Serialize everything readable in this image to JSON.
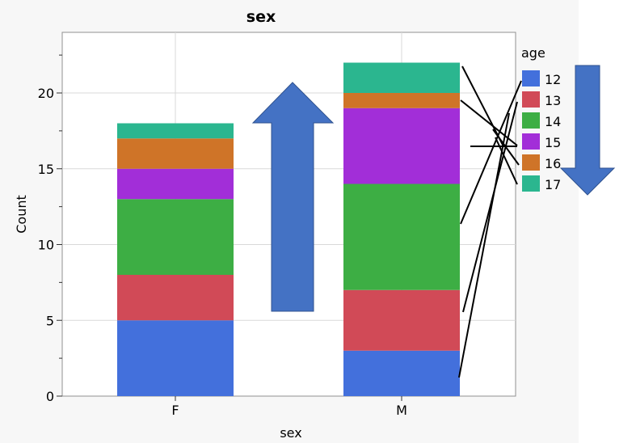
{
  "chart_data": {
    "type": "bar",
    "stacked": true,
    "title": "sex",
    "xlabel": "sex",
    "ylabel": "Count",
    "categories": [
      "F",
      "M"
    ],
    "ylim": [
      0,
      24
    ],
    "yticks": [
      0,
      5,
      10,
      15,
      20
    ],
    "legend_title": "age",
    "legend_position": "right",
    "series": [
      {
        "name": "12",
        "color": "#4370dc",
        "values": [
          5,
          3
        ]
      },
      {
        "name": "13",
        "color": "#d14a57",
        "values": [
          3,
          4
        ]
      },
      {
        "name": "14",
        "color": "#3dae44",
        "values": [
          5,
          7
        ]
      },
      {
        "name": "15",
        "color": "#a22ed8",
        "values": [
          2,
          5
        ]
      },
      {
        "name": "16",
        "color": "#cf7428",
        "values": [
          2,
          1
        ]
      },
      {
        "name": "17",
        "color": "#2bb68f",
        "values": [
          1,
          2
        ]
      }
    ]
  },
  "annotations": {
    "arrow_color": "#4472c4",
    "arrow_up_description": "up-arrow",
    "arrow_down_description": "down-arrow"
  }
}
